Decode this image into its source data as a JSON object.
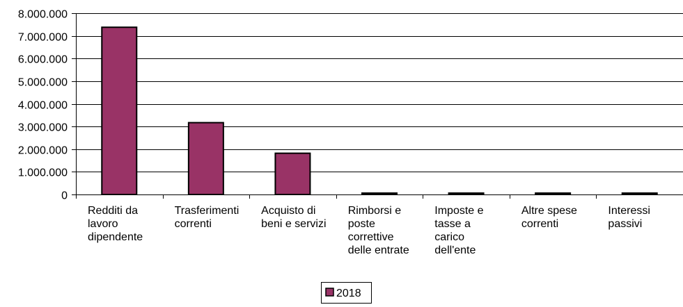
{
  "chart_data": {
    "type": "bar",
    "title": "",
    "xlabel": "",
    "ylabel": "",
    "ylim": [
      0,
      8000000
    ],
    "y_ticks": [
      0,
      1000000,
      2000000,
      3000000,
      4000000,
      5000000,
      6000000,
      7000000,
      8000000
    ],
    "y_tick_labels": [
      "0",
      "1.000.000",
      "2.000.000",
      "3.000.000",
      "4.000.000",
      "5.000.000",
      "6.000.000",
      "7.000.000",
      "8.000.000"
    ],
    "grid": true,
    "legend_position": "bottom-center",
    "categories": [
      [
        "Redditi da",
        "lavoro",
        "dipendente"
      ],
      [
        "Trasferimenti",
        "correnti"
      ],
      [
        "Acquisto di",
        "beni e servizi"
      ],
      [
        "Rimborsi e",
        "poste",
        "correttive",
        "delle entrate"
      ],
      [
        "Imposte e",
        "tasse a",
        "carico",
        "dell'ente"
      ],
      [
        "Altre spese",
        "correnti"
      ],
      [
        "Interessi",
        "passivi"
      ]
    ],
    "series": [
      {
        "name": "2018",
        "color": "#993366",
        "values": [
          7380000,
          3170000,
          1820000,
          30000,
          5000,
          5000,
          5000
        ]
      }
    ]
  }
}
